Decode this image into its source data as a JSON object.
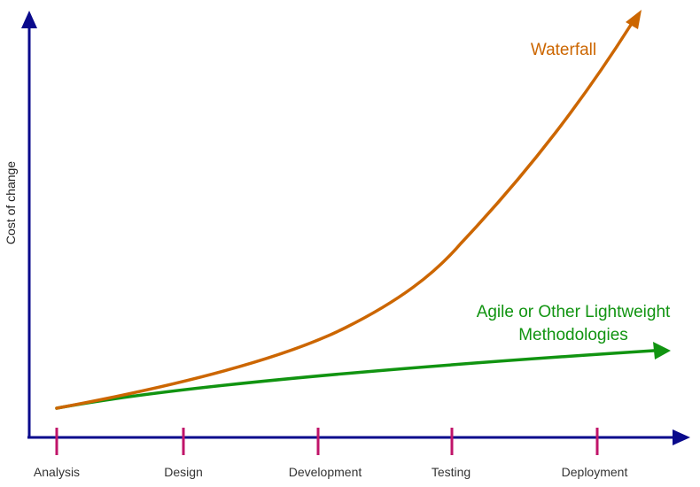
{
  "diagram": {
    "y_axis_label": "Cost of change",
    "colors": {
      "axis": "#0a0a8c",
      "tick": "#c0146a",
      "waterfall": "#cc6600",
      "agile": "#119411"
    },
    "phases": [
      "Analysis",
      "Design",
      "Development",
      "Testing",
      "Deployment"
    ],
    "series": {
      "waterfall": {
        "label": "Waterfall"
      },
      "agile": {
        "label_line1": "Agile or Other Lightweight",
        "label_line2": "Methodologies"
      }
    }
  }
}
